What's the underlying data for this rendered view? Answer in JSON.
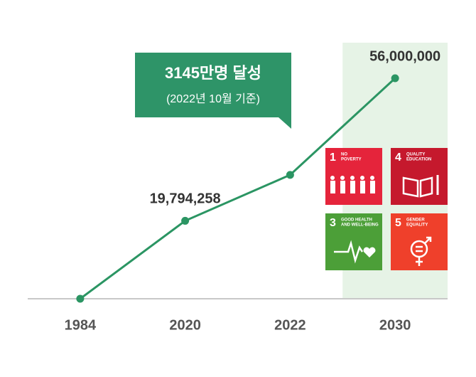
{
  "chart_data": {
    "type": "line",
    "categories": [
      "1984",
      "2020",
      "2022",
      "2030"
    ],
    "series": [
      {
        "color": "#2b9563",
        "values": [
          0,
          19794258,
          31450000,
          56000000
        ],
        "value_labels": [
          null,
          "19,794,258",
          null,
          "56,000,000"
        ]
      }
    ],
    "ylim": [
      0,
      56000000
    ],
    "highlight_color": "#e6f3e6",
    "annotation": {
      "title": "3145만명 달성",
      "subtitle": "(2022년 10월 기준)",
      "color": "#2e9468"
    }
  },
  "sdg_icons": [
    {
      "number": "1",
      "label": [
        "NO",
        "POVERTY"
      ],
      "color": "#e5243b"
    },
    {
      "number": "4",
      "label": [
        "QUALITY",
        "EDUCATION"
      ],
      "color": "#c5192d"
    },
    {
      "number": "3",
      "label": [
        "GOOD HEALTH",
        "AND WELL-BEING"
      ],
      "color": "#4c9f38"
    },
    {
      "number": "5",
      "label": [
        "GENDER",
        "EQUALITY"
      ],
      "color": "#ef402b"
    }
  ]
}
